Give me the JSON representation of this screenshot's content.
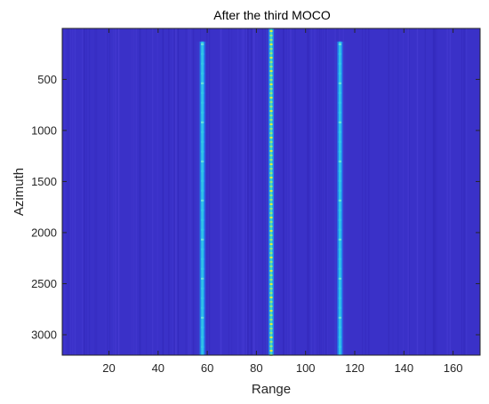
{
  "chart_data": {
    "type": "heatmap",
    "title": "After the third MOCO",
    "xlabel": "Range",
    "ylabel": "Azimuth",
    "xlim": [
      1,
      171
    ],
    "ylim": [
      1,
      3200
    ],
    "y_reversed": true,
    "x_ticks": [
      20,
      40,
      60,
      80,
      100,
      120,
      140,
      160
    ],
    "y_ticks": [
      500,
      1000,
      1500,
      2000,
      2500,
      3000
    ],
    "background_color": "#3a31c8",
    "colormap": "parula",
    "stripes": [
      {
        "range": 58,
        "azimuth_start": 130,
        "azimuth_end": 3200,
        "intensity": 0.55
      },
      {
        "range": 86,
        "azimuth_start": 1,
        "azimuth_end": 3200,
        "intensity": 0.9
      },
      {
        "range": 114,
        "azimuth_start": 130,
        "azimuth_end": 3200,
        "intensity": 0.6
      }
    ],
    "grid": false
  }
}
